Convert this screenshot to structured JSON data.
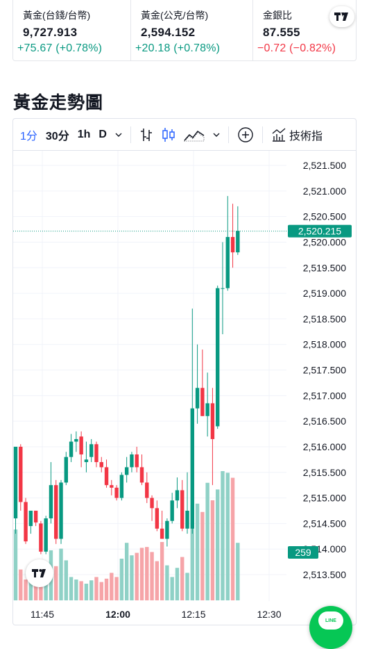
{
  "quotes": [
    {
      "label": "黃金(台錢/台幣)",
      "value": "9,727.913",
      "change": "+75.67 (+0.78%)",
      "direction": "up"
    },
    {
      "label": "黃金(公克/台幣)",
      "value": "2,594.152",
      "change": "+20.18 (+0.78%)",
      "direction": "up"
    },
    {
      "label": "金銀比",
      "value": "87.555",
      "change": "−0.72 (−0.82%)",
      "direction": "down"
    }
  ],
  "section_title": "黃金走勢圖",
  "toolbar": {
    "intervals": [
      "1分",
      "30分",
      "1h",
      "D"
    ],
    "active_interval": "1分",
    "indicators_label": "技術指"
  },
  "colors": {
    "up": "#089981",
    "down": "#f23645",
    "accent": "#2962ff",
    "volume_up": "#8fd1c6",
    "volume_down": "#f6a4a8"
  },
  "chart_data": {
    "type": "candlestick",
    "y_ticks": [
      "2,521.500",
      "2,521.000",
      "2,520.500",
      "2,520.000",
      "2,519.500",
      "2,519.000",
      "2,518.500",
      "2,518.000",
      "2,517.500",
      "2,517.000",
      "2,516.500",
      "2,516.000",
      "2,515.500",
      "2,515.000",
      "2,514.500",
      "2,514.000",
      "2,513.500"
    ],
    "y_tick_values": [
      2521.5,
      2521.0,
      2520.5,
      2520.0,
      2519.5,
      2519.0,
      2518.5,
      2518.0,
      2517.5,
      2517.0,
      2516.5,
      2516.0,
      2515.5,
      2515.0,
      2514.5,
      2514.0,
      2513.5
    ],
    "x_ticks": [
      {
        "label": "11:45",
        "bold": false
      },
      {
        "label": "12:00",
        "bold": true
      },
      {
        "label": "12:15",
        "bold": false
      },
      {
        "label": "12:30",
        "bold": false
      }
    ],
    "last_price": "2,520.215",
    "last_price_value": 2520.215,
    "last_volume": "259",
    "candles": [
      {
        "o": 2514.6,
        "h": 2516.0,
        "l": 2514.3,
        "c": 2516.0
      },
      {
        "o": 2516.0,
        "h": 2516.05,
        "l": 2514.75,
        "c": 2514.92
      },
      {
        "o": 2514.92,
        "h": 2515.0,
        "l": 2514.1,
        "c": 2514.15
      },
      {
        "o": 2514.45,
        "h": 2514.75,
        "l": 2514.3,
        "c": 2514.75
      },
      {
        "o": 2514.75,
        "h": 2514.75,
        "l": 2514.45,
        "c": 2514.52
      },
      {
        "o": 2514.5,
        "h": 2514.55,
        "l": 2513.9,
        "c": 2513.95
      },
      {
        "o": 2513.95,
        "h": 2514.65,
        "l": 2513.9,
        "c": 2514.6
      },
      {
        "o": 2514.6,
        "h": 2515.7,
        "l": 2514.5,
        "c": 2515.25
      },
      {
        "o": 2515.25,
        "h": 2515.35,
        "l": 2514.1,
        "c": 2514.2
      },
      {
        "o": 2514.2,
        "h": 2515.35,
        "l": 2514.1,
        "c": 2515.3
      },
      {
        "o": 2515.3,
        "h": 2515.9,
        "l": 2515.25,
        "c": 2515.8
      },
      {
        "o": 2515.8,
        "h": 2516.25,
        "l": 2515.7,
        "c": 2516.1
      },
      {
        "o": 2516.1,
        "h": 2516.3,
        "l": 2515.9,
        "c": 2516.15
      },
      {
        "o": 2516.2,
        "h": 2516.3,
        "l": 2515.6,
        "c": 2515.85
      },
      {
        "o": 2515.7,
        "h": 2516.1,
        "l": 2515.5,
        "c": 2515.75
      },
      {
        "o": 2515.8,
        "h": 2516.15,
        "l": 2515.7,
        "c": 2516.05
      },
      {
        "o": 2516.05,
        "h": 2516.1,
        "l": 2515.6,
        "c": 2515.7
      },
      {
        "o": 2515.7,
        "h": 2515.8,
        "l": 2515.5,
        "c": 2515.6
      },
      {
        "o": 2515.6,
        "h": 2515.75,
        "l": 2515.2,
        "c": 2515.25
      },
      {
        "o": 2515.25,
        "h": 2515.35,
        "l": 2515.05,
        "c": 2515.2
      },
      {
        "o": 2515.2,
        "h": 2515.25,
        "l": 2514.95,
        "c": 2515.0
      },
      {
        "o": 2515.0,
        "h": 2515.5,
        "l": 2514.95,
        "c": 2515.45
      },
      {
        "o": 2515.45,
        "h": 2515.8,
        "l": 2515.3,
        "c": 2515.6
      },
      {
        "o": 2515.6,
        "h": 2515.9,
        "l": 2515.5,
        "c": 2515.85
      },
      {
        "o": 2515.85,
        "h": 2516.0,
        "l": 2515.5,
        "c": 2515.6
      },
      {
        "o": 2515.6,
        "h": 2515.85,
        "l": 2515.25,
        "c": 2515.3
      },
      {
        "o": 2515.3,
        "h": 2515.5,
        "l": 2514.9,
        "c": 2515.0
      },
      {
        "o": 2515.0,
        "h": 2515.05,
        "l": 2514.55,
        "c": 2514.8
      },
      {
        "o": 2514.8,
        "h": 2514.95,
        "l": 2514.35,
        "c": 2514.4
      },
      {
        "o": 2514.4,
        "h": 2514.75,
        "l": 2514.2,
        "c": 2514.2
      },
      {
        "o": 2514.2,
        "h": 2514.6,
        "l": 2514.05,
        "c": 2514.55
      },
      {
        "o": 2514.55,
        "h": 2515.1,
        "l": 2514.5,
        "c": 2514.95
      },
      {
        "o": 2514.95,
        "h": 2515.4,
        "l": 2514.8,
        "c": 2515.15
      },
      {
        "o": 2515.15,
        "h": 2515.35,
        "l": 2514.35,
        "c": 2514.4
      },
      {
        "o": 2514.4,
        "h": 2515.5,
        "l": 2514.3,
        "c": 2514.75
      },
      {
        "o": 2514.4,
        "h": 2518.7,
        "l": 2514.3,
        "c": 2516.75
      },
      {
        "o": 2516.75,
        "h": 2518.0,
        "l": 2516.45,
        "c": 2517.15
      },
      {
        "o": 2517.15,
        "h": 2517.9,
        "l": 2516.6,
        "c": 2516.6
      },
      {
        "o": 2516.6,
        "h": 2517.45,
        "l": 2516.2,
        "c": 2516.85
      },
      {
        "o": 2516.85,
        "h": 2517.15,
        "l": 2515.25,
        "c": 2516.15
      },
      {
        "o": 2516.4,
        "h": 2519.15,
        "l": 2516.35,
        "c": 2519.1
      },
      {
        "o": 2519.1,
        "h": 2520.0,
        "l": 2518.2,
        "c": 2519.1
      },
      {
        "o": 2519.1,
        "h": 2520.9,
        "l": 2519.05,
        "c": 2520.1
      },
      {
        "o": 2520.1,
        "h": 2520.75,
        "l": 2519.5,
        "c": 2519.8
      },
      {
        "o": 2519.8,
        "h": 2520.7,
        "l": 2519.75,
        "c": 2520.22
      }
    ],
    "volumes": [
      85,
      37,
      25,
      33,
      20,
      34,
      21,
      60,
      41,
      62,
      48,
      28,
      25,
      23,
      20,
      24,
      28,
      22,
      26,
      33,
      28,
      50,
      69,
      54,
      57,
      63,
      64,
      58,
      47,
      70,
      42,
      28,
      39,
      52,
      33,
      114,
      116,
      106,
      141,
      120,
      133,
      155,
      153,
      147,
      69
    ]
  }
}
